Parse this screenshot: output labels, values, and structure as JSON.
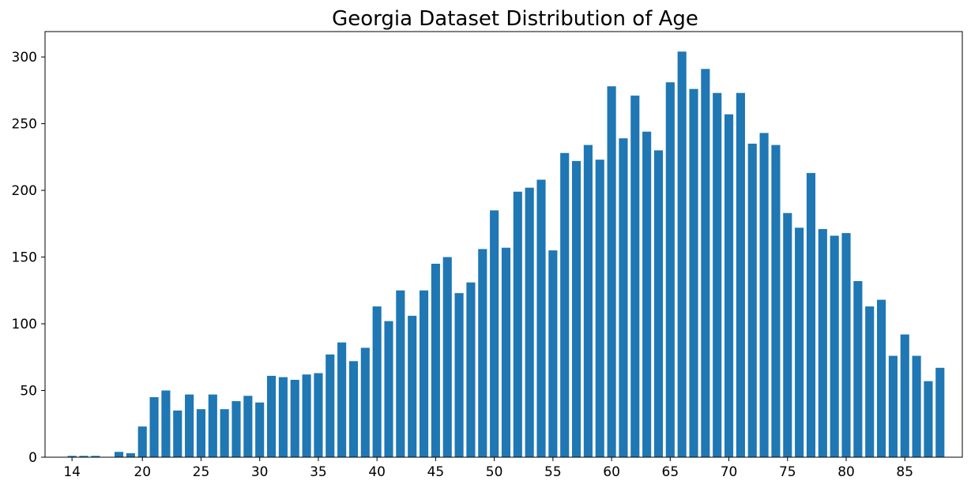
{
  "chart_data": {
    "type": "bar",
    "title": "Georgia Dataset Distribution of Age",
    "xlabel": "",
    "ylabel": "",
    "x": [
      14,
      15,
      16,
      17,
      18,
      19,
      20,
      21,
      22,
      23,
      24,
      25,
      26,
      27,
      28,
      29,
      30,
      31,
      32,
      33,
      34,
      35,
      36,
      37,
      38,
      39,
      40,
      41,
      42,
      43,
      44,
      45,
      46,
      47,
      48,
      49,
      50,
      51,
      52,
      53,
      54,
      55,
      56,
      57,
      58,
      59,
      60,
      61,
      62,
      63,
      64,
      65,
      66,
      67,
      68,
      69,
      70,
      71,
      72,
      73,
      74,
      75,
      76,
      77,
      78,
      79,
      80,
      81,
      82,
      83,
      84,
      85,
      86,
      87,
      88
    ],
    "values": [
      1,
      1,
      1,
      0,
      4,
      3,
      23,
      45,
      50,
      35,
      47,
      36,
      47,
      36,
      42,
      46,
      41,
      61,
      60,
      58,
      62,
      63,
      77,
      86,
      72,
      82,
      113,
      102,
      125,
      106,
      125,
      145,
      150,
      123,
      131,
      156,
      185,
      157,
      199,
      202,
      208,
      155,
      228,
      222,
      234,
      223,
      278,
      239,
      271,
      244,
      230,
      281,
      304,
      276,
      291,
      273,
      257,
      273,
      235,
      243,
      234,
      183,
      172,
      213,
      171,
      166,
      168,
      132,
      113,
      118,
      76,
      92,
      76,
      57,
      67
    ],
    "xticks": [
      14,
      20,
      25,
      30,
      35,
      40,
      45,
      50,
      55,
      60,
      65,
      70,
      75,
      80,
      85
    ],
    "yticks": [
      0,
      50,
      100,
      150,
      200,
      250,
      300
    ],
    "xlim": [
      11.7,
      89.9
    ],
    "ylim": [
      0,
      319
    ],
    "grid": false,
    "legend": "none",
    "bar_color": "#1f77b4"
  }
}
